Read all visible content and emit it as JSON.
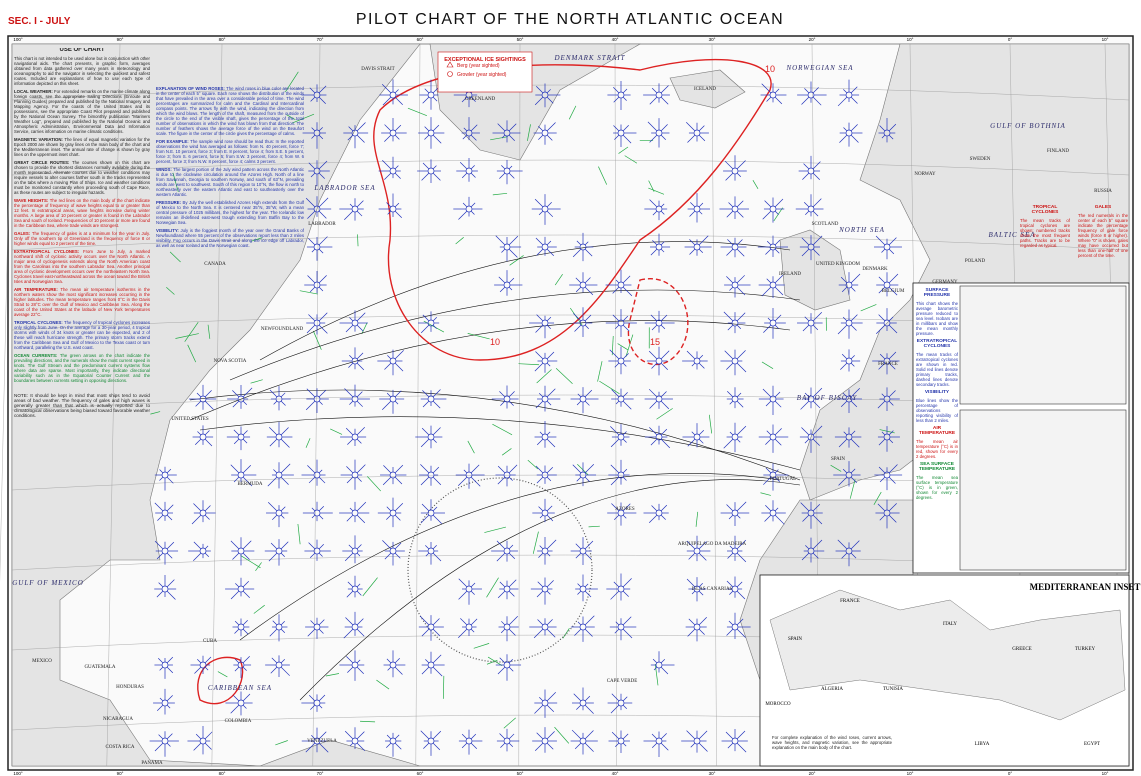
{
  "header": {
    "section": "SEC. I - JULY",
    "title": "PILOT CHART OF THE NORTH ATLANTIC OCEAN"
  },
  "longitudes": [
    "100°",
    "90°",
    "80°",
    "70°",
    "60°",
    "50°",
    "40°",
    "30°",
    "20°",
    "10°",
    "0°",
    "10°"
  ],
  "ice_legend": {
    "title": "EXCEPTIONAL ICE SIGHTINGS",
    "items": [
      "Berg (year sighted)",
      "Growler (year sighted)"
    ]
  },
  "left_panel": {
    "title": "USE OF CHART",
    "intro": "This chart is not intended to be used alone but in conjunction with other navigational aids. The chart presents, in graphic form, averages obtained from data gathered over many years in meteorology and oceanography to aid the navigator in selecting the quickest and safest routes. Included are explanations of how to use each type of information depicted on this sheet.",
    "sections": [
      {
        "heading": "LOCAL WEATHER:",
        "text": "For extended remarks on the marine climate along foreign coasts, see the appropriate Sailing Directions (Enroute and Planning Guides) prepared and published by the National Imagery and Mapping Agency. For the coasts of the United States and its possessions, see the appropriate Coast Pilot prepared and published by the National Ocean Survey. The bimonthly publication \"Mariners Weather Log\", prepared and published by the National Oceanic and Atmospheric Administration, Environmental Data and Information Service, carries information on marine climatic conditions."
      },
      {
        "heading": "MAGNETIC VARIATION:",
        "text": "The lines of equal magnetic variation for the Epoch 2000 are shown by gray lines on the main body of the chart and the Mediterranean inset. The annual rate of change is shown by gray lines on the uppermost inset chart."
      },
      {
        "heading": "GREAT CIRCLE ROUTES:",
        "text": "The courses shown on this chart are chosen to provide the shortest distances normally available during the month represented. Alternate courses due to weather conditions may require vessels to alter courses farther south in the tracks represented on the tabs where a moving Plan of Ships. Ice and weather conditions must be monitored constantly when proceeding south of Cape Race, as these routes are subject to irregular hazards."
      },
      {
        "heading": "WAVE HEIGHTS:",
        "text": "The red lines on the main body of the chart indicate the percentage of frequency of wave heights equal to or greater than 12 feet. In extratropical areas, wave heights increase during winter months. A large area of 10 percent or greater is found in the Labrador Sea and south of Iceland. Frequencies of 10 percent or more are found in the Caribbean Sea, where trade winds are strongest."
      },
      {
        "heading": "GALES:",
        "text": "The frequency of gales is at a minimum for the year in July. Only off the southern tip of Greenland is the frequency of force 8 or higher winds equal to 2 percent of the time."
      },
      {
        "heading": "EXTRATROPICAL CYCLONES:",
        "text": "From June to July, a marked northward shift of cyclonic activity occurs over the North Atlantic. A major area of cyclogenesis extends along the North American coast from the Carolinas into the southern Labrador Sea. Another principal area of cyclonic development occurs over the northeastern North Sea. Cyclones travel east-northeastward across the ocean toward the British Isles and Norwegian Sea."
      },
      {
        "heading": "AIR TEMPERATURE:",
        "text": "The mean air temperature isotherms in the northern waters show the most significant increases occurring in the higher latitudes. The mean temperature ranges from 0°C in the Davis Strait to 28°C over the Gulf of Mexico and Caribbean Sea. Along the coast of the United States at the latitude of New York temperatures average 22°C."
      },
      {
        "heading": "TROPICAL CYCLONES:",
        "text": "The frequency of tropical cyclones increases only slightly from June. On the average for a 30-year period, 4 tropical storms with winds of 34 knots or greater can be expected, and 2 of these will reach hurricane strength. The primary storm tracks extend from the Caribbean Sea and Gulf of Mexico to the Texas coast or turn northward, paralleling the U.S. east coast."
      },
      {
        "heading": "OCEAN CURRENTS:",
        "text": "The green arrows on the chart indicate the prevailing directions, and the numerals show the most current speed in knots. The Gulf Stream and the predominant current systems flow where data are sparse. Most importantly, they indicate directional variability such as in the Equatorial Counter Current and the boundaries between currents setting in opposing directions."
      }
    ],
    "note": "NOTE: It should be kept in mind that most ships tend to avoid areas of bad weather. The frequency of gales and high waves is generally greater than that which is actually reported due to climatological observations being biased toward favorable weather conditions."
  },
  "center_panel": [
    {
      "heading": "EXPLANATION OF WIND ROSES:",
      "text": "The wind roses in blue color are located in the center of each 5° square. Each rose shows the distribution of the winds that have prevailed in the area over a considerable period of time. The wind percentages are summarized for calm and the Cardinal and Intercardinal compass points. The arrows fly with the wind, indicating the direction from which the wind blows. The length of the shaft, measured from the outside of the circle to the end of the visible shaft, gives the percentage of the total number of observations in which the wind has blown from that direction. The number of feathers shows the average force of the wind on the Beaufort scale. The figure in the center of the circle gives the percentage of calms."
    },
    {
      "heading": "FOR EXAMPLE:",
      "text": "The sample wind rose should be read thus: In the reported observations the wind has averaged as follows: from N. 40 percent, force 7; from N.E. 10 percent, force 3; from E. 8 percent, force 4; from S.E. 5 percent, force 3; from S. 6 percent, force 5; from S.W. 3 percent, force 4; from W. 6 percent, force 3; from N.W. 8 percent, force 4; calms 3 percent."
    },
    {
      "heading": "WINDS:",
      "text": "The largest portion of the July wind pattern across the North Atlantic is due to the clockwise circulation around the Azores High. North of a line from Savannah, Georgia to southern Norway, and south of 63°N, prevailing winds are west to southwest. South of this region to 10°N, the flow is north to northeasterly over the eastern Atlantic and east to southeasterly over the western Atlantic."
    },
    {
      "heading": "PRESSURE:",
      "text": "By July the well established Azores High extends from the Gulf of Mexico to the North Sea. It is centered near 35°N, 35°W, with a mean central pressure of 1025 millibars, the highest for the year. The Icelandic low remains an ill-defined east-west trough extending from Baffin Bay to the Norwegian Sea."
    },
    {
      "heading": "VISIBILITY:",
      "text": "July is the foggiest month of the year over the Grand Banks of Newfoundland where 55 percent of the observations report less than 2 miles visibility. Fog occurs in the Davis Strait and along the ice edge off Labrador, as well as near Iceland and the Norwegian coast."
    }
  ],
  "right_panel": [
    {
      "heading": "GALES",
      "text": "The red numerals in the center of each 5° square indicate the percentage frequency of gale force winds (force 8 or higher). Where \"0\" is shown, gales may have occurred but less than one-half of one percent of the time."
    },
    {
      "heading": "TROPICAL CYCLONES",
      "text": "The mean tracks of tropical cyclones are shown; numbered tracks show the most frequent paths. Tracks are to be regarded as typical."
    },
    {
      "heading": "SURFACE PRESSURE",
      "text": "This chart shows the average barometric pressure reduced to sea level. Isobars are in millibars and show the mean monthly pressure."
    },
    {
      "heading": "EXTRATROPICAL CYCLONES",
      "text": "The mean tracks of extratropical cyclones are shown in red. Solid red lines denote primary tracks, dashed lines denote secondary tracks."
    },
    {
      "heading": "VISIBILITY",
      "text": "Blue lines show the percentage of observations reporting visibility of less than 2 miles."
    },
    {
      "heading": "AIR TEMPERATURE",
      "text": "The mean air temperature (°C) is in red, shown for every 2 degrees."
    },
    {
      "heading": "SEA SURFACE TEMPERATURE",
      "text": "The mean sea surface temperature (°C) is in green, shown for every 2 degrees."
    }
  ],
  "places": [
    "DAVIS STRAIT",
    "DENMARK STRAIT",
    "GREENLAND",
    "ICELAND",
    "NORWEGIAN SEA",
    "LABRADOR SEA",
    "LABRADOR",
    "CANADA",
    "NEWFOUNDLAND",
    "NOVA SCOTIA",
    "UNITED STATES",
    "BERMUDA",
    "GULF OF MEXICO",
    "MEXICO",
    "GUATEMALA",
    "HONDURAS",
    "NICARAGUA",
    "COSTA RICA",
    "PANAMA",
    "CUBA",
    "CARIBBEAN SEA",
    "COLOMBIA",
    "VENEZUELA",
    "AZORES",
    "ARQUIPELAGO DA MADEIRA",
    "ISLAS CANARIAS",
    "CAPE VERDE",
    "SPAIN",
    "PORTUGAL",
    "BAY OF BISCAY",
    "FRANCE",
    "IRELAND",
    "UNITED KINGDOM",
    "SCOTLAND",
    "NORTH SEA",
    "NORWAY",
    "SWEDEN",
    "FINLAND",
    "RUSSIA",
    "GULF OF BOTHNIA",
    "BALTIC SEA",
    "GERMANY",
    "BELGIUM",
    "DENMARK",
    "POLAND"
  ],
  "contour_labels": [
    "10",
    "10",
    "15"
  ],
  "inset": {
    "title": "MEDITERRANEAN INSET",
    "places": [
      "FRANCE",
      "ITALY",
      "GREECE",
      "TURKEY",
      "SPAIN",
      "MOROCCO",
      "ALGERIA",
      "TUNISIA",
      "LIBYA",
      "EGYPT"
    ],
    "note": "For complete explanation of the wind roses, current arrows, wave heights, and magnetic variation, see the appropriate explanation on the main body of the chart."
  }
}
